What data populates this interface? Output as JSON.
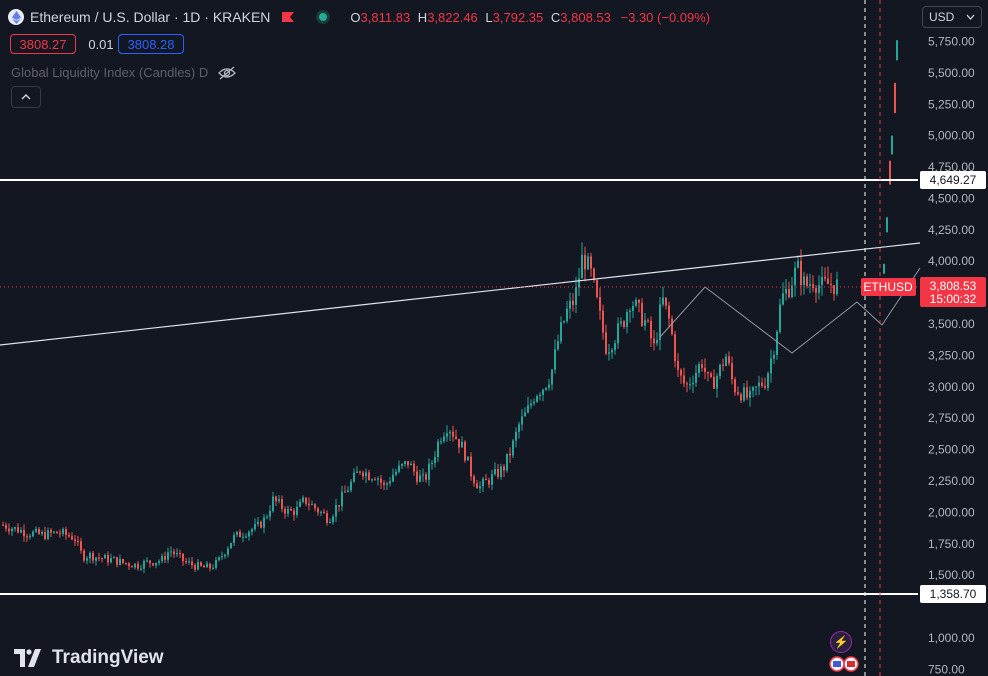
{
  "legend": {
    "symbol_title": "Ethereum / U.S. Dollar · 1D · KRAKEN",
    "o_label": "O",
    "o_value": "3,811.83",
    "h_label": "H",
    "h_value": "3,822.46",
    "l_label": "L",
    "l_value": "3,792.35",
    "c_label": "C",
    "c_value": "3,808.53",
    "change": "−3.30 (−0.09%)"
  },
  "quote": {
    "bid": "3808.27",
    "spread": "0.01",
    "ask": "3808.28"
  },
  "indicator": {
    "label": "Global Liquidity Index (Candles) D"
  },
  "currency_selector": {
    "label": "USD"
  },
  "branding": {
    "logo_text": "TradingView"
  },
  "price_axis": {
    "ticks": [
      "5,750.00",
      "5,500.00",
      "5,250.00",
      "5,000.00",
      "4,750.00",
      "4,500.00",
      "4,250.00",
      "4,000.00",
      "3,500.00",
      "3,250.00",
      "3,000.00",
      "2,750.00",
      "2,500.00",
      "2,250.00",
      "2,000.00",
      "1,750.00",
      "1,500.00",
      "1,000.00",
      "750.00"
    ]
  },
  "labels": {
    "level_high": "4,649.27",
    "level_low": "1,358.70",
    "last_symbol": "ETHUSD",
    "last_price": "3,808.53",
    "countdown": "15:00:32"
  },
  "colors": {
    "background": "#131722",
    "up": "#26a69a",
    "down": "#ef5350",
    "text": "#d1d4dc",
    "axis_text": "#b2b5be",
    "level_line": "#ffffff",
    "price_tag": "#f23645",
    "bid": "#f23645",
    "ask": "#2962ff"
  },
  "chart_data": {
    "type": "candlestick",
    "symbol": "ETHUSD",
    "timeframe": "1D",
    "exchange": "KRAKEN",
    "y_axis": {
      "min": 750,
      "max": 5750,
      "ticks": [
        750,
        1000,
        1500,
        1750,
        2000,
        2250,
        2500,
        2750,
        3000,
        3250,
        3500,
        4000,
        4250,
        4500,
        4750,
        5000,
        5250,
        5500,
        5750
      ]
    },
    "last_price": 3808.53,
    "horizontal_levels": [
      4649.27,
      1358.7
    ],
    "trendline": {
      "from_price": 3330,
      "to_price": 4130
    },
    "projection_path": [
      3810,
      3560,
      3750,
      4080
    ],
    "price_path_close": [
      1900,
      1880,
      1860,
      1840,
      1830,
      1820,
      1830,
      1840,
      1820,
      1800,
      1650,
      1660,
      1640,
      1630,
      1620,
      1600,
      1590,
      1580,
      1600,
      1610,
      1620,
      1700,
      1650,
      1600,
      1580,
      1560,
      1560,
      1600,
      1700,
      1800,
      1830,
      1860,
      1880,
      1950,
      2100,
      2050,
      2000,
      2020,
      2100,
      2050,
      2000,
      1950,
      2050,
      2150,
      2250,
      2350,
      2300,
      2300,
      2200,
      2300,
      2350,
      2400,
      2300,
      2250,
      2400,
      2600,
      2700,
      2600,
      2500,
      2300,
      2200,
      2250,
      2300,
      2350,
      2500,
      2700,
      2800,
      2950,
      3000,
      3100,
      3400,
      3600,
      3700,
      4050,
      3900,
      3600,
      3300,
      3400,
      3500,
      3700,
      3600,
      3500,
      3300,
      3700,
      3500,
      3100,
      3000,
      3100,
      3200,
      3000,
      3100,
      3250,
      3000,
      2950,
      2900,
      3000,
      3050,
      3300,
      3700,
      3800,
      3950,
      3800,
      3850,
      3800,
      3820,
      3808
    ]
  }
}
